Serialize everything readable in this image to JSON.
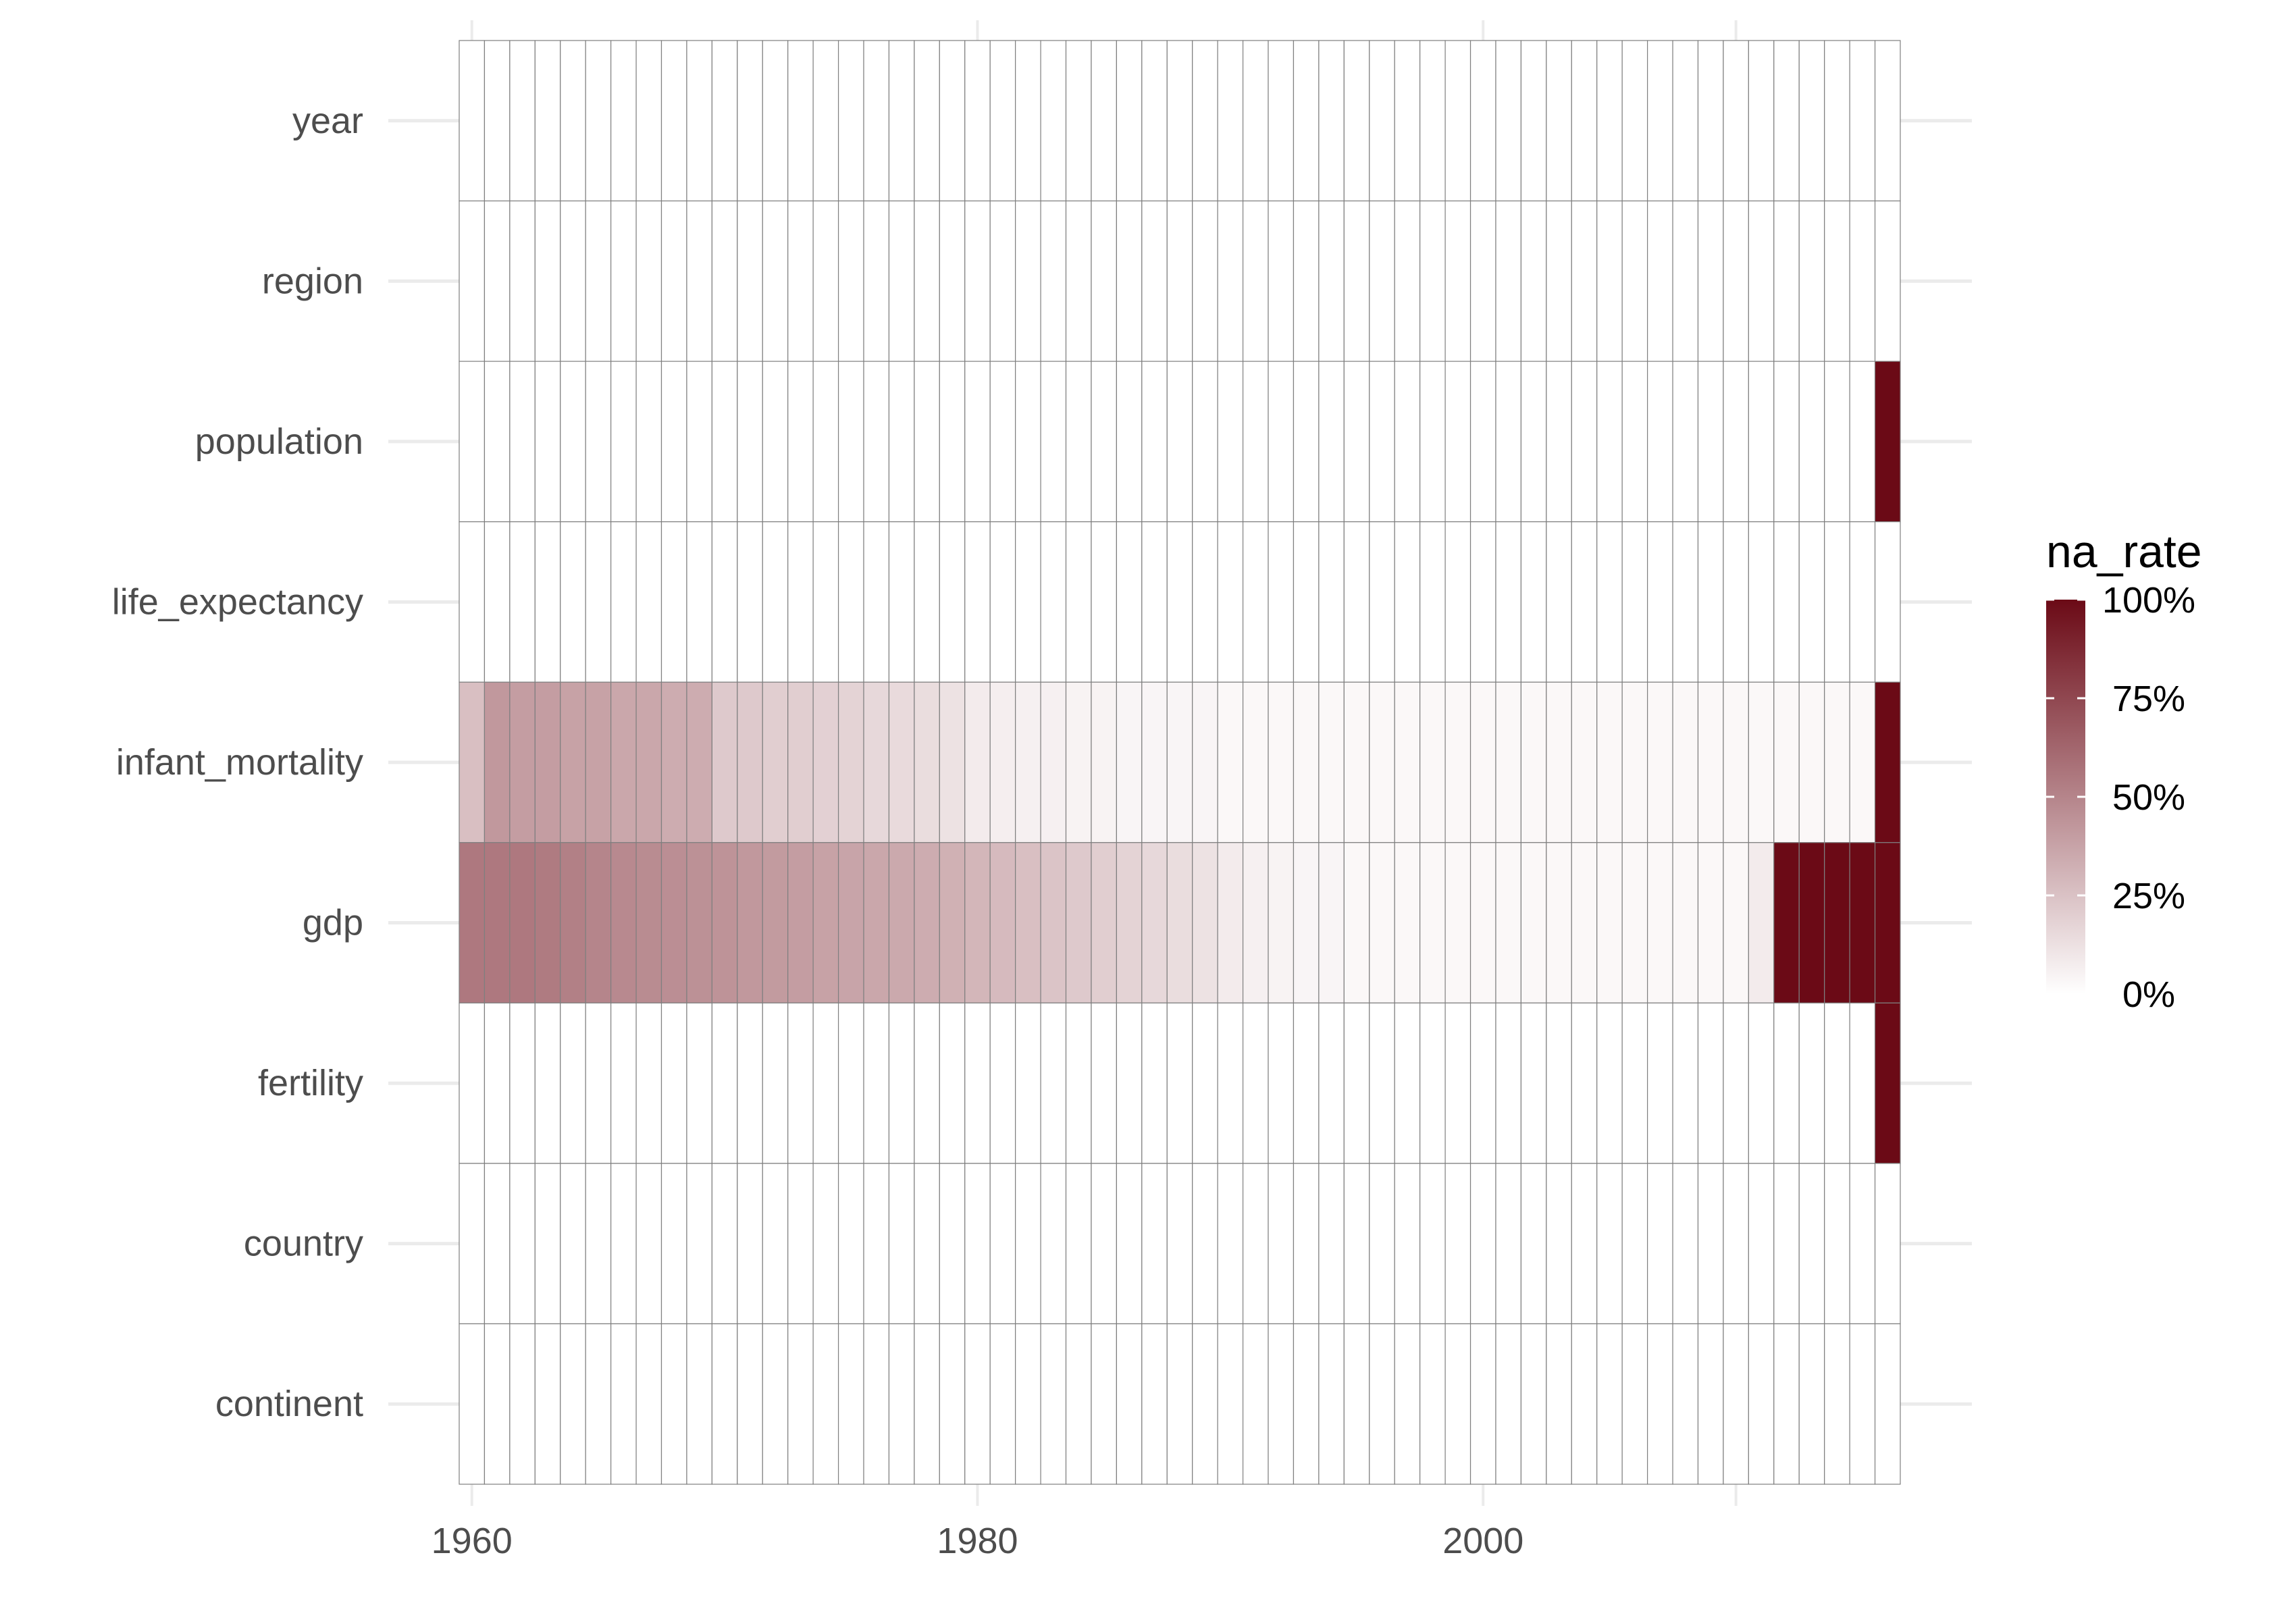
{
  "chart_data": {
    "type": "heatmap",
    "title": "",
    "xlabel": "",
    "ylabel": "",
    "x": {
      "start_year": 1960,
      "end_year": 2016,
      "ticks": [
        1960,
        1980,
        2000
      ],
      "tick_labels": [
        "1960",
        "1980",
        "2000"
      ]
    },
    "variables": [
      "year",
      "region",
      "population",
      "life_expectancy",
      "infant_mortality",
      "gdp",
      "fertility",
      "country",
      "continent"
    ],
    "series": [
      {
        "name": "year",
        "na_rate": [
          0,
          0,
          0,
          0,
          0,
          0,
          0,
          0,
          0,
          0,
          0,
          0,
          0,
          0,
          0,
          0,
          0,
          0,
          0,
          0,
          0,
          0,
          0,
          0,
          0,
          0,
          0,
          0,
          0,
          0,
          0,
          0,
          0,
          0,
          0,
          0,
          0,
          0,
          0,
          0,
          0,
          0,
          0,
          0,
          0,
          0,
          0,
          0,
          0,
          0,
          0,
          0,
          0,
          0,
          0,
          0,
          0
        ]
      },
      {
        "name": "region",
        "na_rate": [
          0,
          0,
          0,
          0,
          0,
          0,
          0,
          0,
          0,
          0,
          0,
          0,
          0,
          0,
          0,
          0,
          0,
          0,
          0,
          0,
          0,
          0,
          0,
          0,
          0,
          0,
          0,
          0,
          0,
          0,
          0,
          0,
          0,
          0,
          0,
          0,
          0,
          0,
          0,
          0,
          0,
          0,
          0,
          0,
          0,
          0,
          0,
          0,
          0,
          0,
          0,
          0,
          0,
          0,
          0,
          0,
          0
        ]
      },
      {
        "name": "population",
        "na_rate": [
          0,
          0,
          0,
          0,
          0,
          0,
          0,
          0,
          0,
          0,
          0,
          0,
          0,
          0,
          0,
          0,
          0,
          0,
          0,
          0,
          0,
          0,
          0,
          0,
          0,
          0,
          0,
          0,
          0,
          0,
          0,
          0,
          0,
          0,
          0,
          0,
          0,
          0,
          0,
          0,
          0,
          0,
          0,
          0,
          0,
          0,
          0,
          0,
          0,
          0,
          0,
          0,
          0,
          0,
          0,
          0,
          1.0
        ]
      },
      {
        "name": "life_expectancy",
        "na_rate": [
          0,
          0,
          0,
          0,
          0,
          0,
          0,
          0,
          0,
          0,
          0,
          0,
          0,
          0,
          0,
          0,
          0,
          0,
          0,
          0,
          0,
          0,
          0,
          0,
          0,
          0,
          0,
          0,
          0,
          0,
          0,
          0,
          0,
          0,
          0,
          0,
          0,
          0,
          0,
          0,
          0,
          0,
          0,
          0,
          0,
          0,
          0,
          0,
          0,
          0,
          0,
          0,
          0,
          0,
          0,
          0,
          0
        ]
      },
      {
        "name": "infant_mortality",
        "na_rate": [
          0.26,
          0.42,
          0.4,
          0.4,
          0.38,
          0.38,
          0.36,
          0.36,
          0.34,
          0.34,
          0.22,
          0.22,
          0.2,
          0.2,
          0.19,
          0.18,
          0.16,
          0.15,
          0.14,
          0.12,
          0.08,
          0.07,
          0.06,
          0.06,
          0.05,
          0.05,
          0.04,
          0.04,
          0.04,
          0.04,
          0.03,
          0.03,
          0.03,
          0.03,
          0.03,
          0.03,
          0.03,
          0.03,
          0.03,
          0.03,
          0.03,
          0.03,
          0.03,
          0.03,
          0.03,
          0.03,
          0.03,
          0.03,
          0.03,
          0.03,
          0.03,
          0.03,
          0.03,
          0.03,
          0.03,
          0.03,
          1.0
        ]
      },
      {
        "name": "gdp",
        "na_rate": [
          0.55,
          0.55,
          0.55,
          0.54,
          0.52,
          0.5,
          0.48,
          0.47,
          0.46,
          0.45,
          0.44,
          0.42,
          0.41,
          0.4,
          0.38,
          0.37,
          0.36,
          0.35,
          0.34,
          0.32,
          0.3,
          0.28,
          0.26,
          0.24,
          0.22,
          0.2,
          0.18,
          0.16,
          0.14,
          0.12,
          0.08,
          0.06,
          0.05,
          0.04,
          0.04,
          0.03,
          0.03,
          0.03,
          0.03,
          0.03,
          0.03,
          0.03,
          0.03,
          0.03,
          0.03,
          0.03,
          0.03,
          0.03,
          0.03,
          0.03,
          0.03,
          0.08,
          1.0,
          1.0,
          1.0,
          1.0,
          1.0
        ]
      },
      {
        "name": "fertility",
        "na_rate": [
          0,
          0,
          0,
          0,
          0,
          0,
          0,
          0,
          0,
          0,
          0,
          0,
          0,
          0,
          0,
          0,
          0,
          0,
          0,
          0,
          0,
          0,
          0,
          0,
          0,
          0,
          0,
          0,
          0,
          0,
          0,
          0,
          0,
          0,
          0,
          0,
          0,
          0,
          0,
          0,
          0,
          0,
          0,
          0,
          0,
          0,
          0,
          0,
          0,
          0,
          0,
          0,
          0,
          0,
          0,
          0,
          1.0
        ]
      },
      {
        "name": "country",
        "na_rate": [
          0,
          0,
          0,
          0,
          0,
          0,
          0,
          0,
          0,
          0,
          0,
          0,
          0,
          0,
          0,
          0,
          0,
          0,
          0,
          0,
          0,
          0,
          0,
          0,
          0,
          0,
          0,
          0,
          0,
          0,
          0,
          0,
          0,
          0,
          0,
          0,
          0,
          0,
          0,
          0,
          0,
          0,
          0,
          0,
          0,
          0,
          0,
          0,
          0,
          0,
          0,
          0,
          0,
          0,
          0,
          0,
          0
        ]
      },
      {
        "name": "continent",
        "na_rate": [
          0,
          0,
          0,
          0,
          0,
          0,
          0,
          0,
          0,
          0,
          0,
          0,
          0,
          0,
          0,
          0,
          0,
          0,
          0,
          0,
          0,
          0,
          0,
          0,
          0,
          0,
          0,
          0,
          0,
          0,
          0,
          0,
          0,
          0,
          0,
          0,
          0,
          0,
          0,
          0,
          0,
          0,
          0,
          0,
          0,
          0,
          0,
          0,
          0,
          0,
          0,
          0,
          0,
          0,
          0,
          0,
          0
        ]
      }
    ],
    "legend": {
      "title": "na_rate",
      "placement": "right",
      "ticks": [
        0,
        0.25,
        0.5,
        0.75,
        1.0
      ],
      "tick_labels": [
        "0%",
        "25%",
        "50%",
        "75%",
        "100%"
      ],
      "color_low": "#ffffff",
      "color_high": "#6b0a16"
    },
    "grid": true
  }
}
